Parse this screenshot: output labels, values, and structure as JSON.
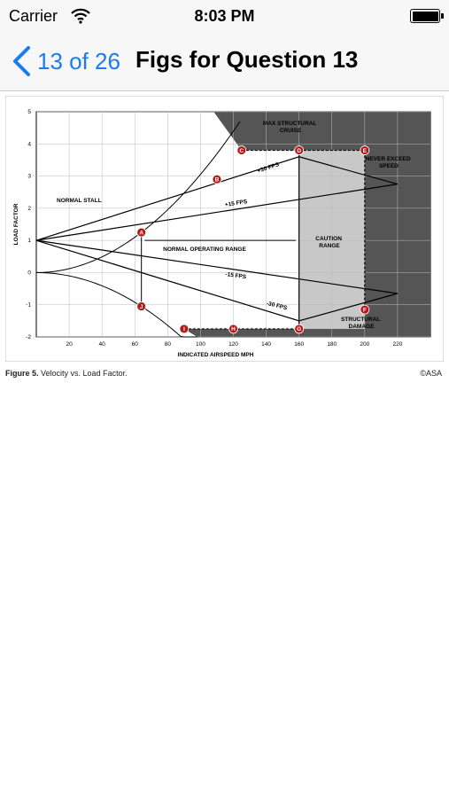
{
  "status_bar": {
    "carrier": "Carrier",
    "time": "8:03 PM"
  },
  "nav": {
    "back_label": "13 of 26",
    "title": "Figs for Question 13"
  },
  "figure": {
    "caption_bold": "Figure 5.",
    "caption_text": "Velocity vs. Load Factor.",
    "copyright": "©ASA"
  },
  "chart_data": {
    "type": "line",
    "xlabel": "INDICATED AIRSPEED MPH",
    "ylabel": "LOAD FACTOR",
    "x_ticks": [
      20,
      40,
      60,
      80,
      100,
      120,
      140,
      160,
      180,
      200,
      220
    ],
    "y_ticks": [
      5,
      4,
      3,
      2,
      1,
      0,
      -1,
      -2
    ],
    "xlim": [
      0,
      240
    ],
    "ylim": [
      -2,
      5
    ],
    "grid": true,
    "lines": [
      {
        "label": "+30 FPS",
        "x": [
          0,
          160,
          220
        ],
        "y": [
          1,
          3.6,
          2.75
        ]
      },
      {
        "label": "+15 FPS",
        "x": [
          0,
          220
        ],
        "y": [
          1,
          2.75
        ]
      },
      {
        "label": "-15 FPS",
        "x": [
          0,
          220
        ],
        "y": [
          1,
          -0.65
        ]
      },
      {
        "label": "-30 FPS",
        "x": [
          0,
          160,
          220
        ],
        "y": [
          1,
          -1.5,
          -0.65
        ]
      }
    ],
    "annotations": [
      {
        "text": "MAX STRUCTURAL\nCRUISE"
      },
      {
        "text": "NEVER EXCEED\nSPEED"
      },
      {
        "text": "NORMAL STALL"
      },
      {
        "text": "NORMAL OPERATING RANGE"
      },
      {
        "text": "CAUTION\nRANGE"
      },
      {
        "text": "STRUCTURAL\nDAMAGE"
      }
    ],
    "points": [
      {
        "label": "A",
        "x": 64,
        "y": 1.25
      },
      {
        "label": "B",
        "x": 110,
        "y": 2.9
      },
      {
        "label": "C",
        "x": 125,
        "y": 3.8
      },
      {
        "label": "D",
        "x": 160,
        "y": 3.8
      },
      {
        "label": "E",
        "x": 200,
        "y": 3.8
      },
      {
        "label": "F",
        "x": 200,
        "y": -1.15
      },
      {
        "label": "G",
        "x": 160,
        "y": -1.75
      },
      {
        "label": "H",
        "x": 120,
        "y": -1.75
      },
      {
        "label": "I",
        "x": 90,
        "y": -1.75
      },
      {
        "label": "J",
        "x": 64,
        "y": -1.05
      }
    ]
  }
}
